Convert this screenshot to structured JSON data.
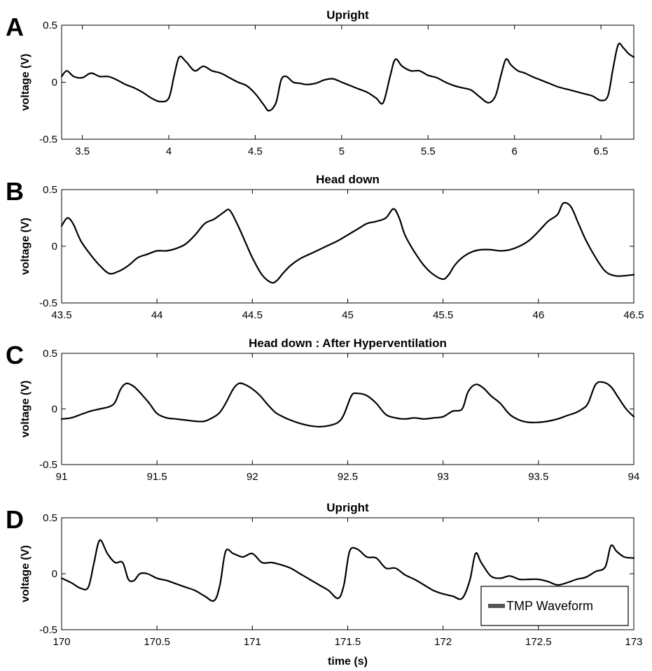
{
  "chart_data": [
    {
      "panel": "A",
      "type": "line",
      "title": "Upright",
      "ylabel": "voltage (V)",
      "xlabel": "",
      "xlim": [
        3.38,
        6.69
      ],
      "ylim": [
        -0.5,
        0.5
      ],
      "xticks": [
        "3.5",
        "4",
        "4.5",
        "5",
        "5.5",
        "6",
        "6.5"
      ],
      "yticks": [
        "-0.5",
        "0",
        "0.5"
      ],
      "series": [
        {
          "x": [
            3.38,
            3.41,
            3.45,
            3.5,
            3.55,
            3.6,
            3.65,
            3.7,
            3.75,
            3.8,
            3.85,
            3.9,
            3.95,
            4.0,
            4.03,
            4.06,
            4.1,
            4.15,
            4.2,
            4.25,
            4.3,
            4.35,
            4.4,
            4.45,
            4.5,
            4.55,
            4.58,
            4.62,
            4.65,
            4.68,
            4.72,
            4.76,
            4.8,
            4.85,
            4.9,
            4.95,
            5.0,
            5.05,
            5.1,
            5.15,
            5.2,
            5.24,
            5.28,
            5.31,
            5.35,
            5.4,
            5.45,
            5.5,
            5.55,
            5.6,
            5.65,
            5.7,
            5.75,
            5.8,
            5.85,
            5.89,
            5.92,
            5.95,
            5.98,
            6.02,
            6.06,
            6.1,
            6.15,
            6.2,
            6.25,
            6.3,
            6.35,
            6.4,
            6.45,
            6.5,
            6.54,
            6.57,
            6.6,
            6.63,
            6.66,
            6.69
          ],
          "y": [
            0.05,
            0.1,
            0.05,
            0.04,
            0.08,
            0.05,
            0.05,
            0.02,
            -0.02,
            -0.05,
            -0.09,
            -0.14,
            -0.17,
            -0.14,
            0.05,
            0.22,
            0.18,
            0.1,
            0.14,
            0.1,
            0.08,
            0.04,
            0.0,
            -0.03,
            -0.1,
            -0.2,
            -0.25,
            -0.18,
            0.02,
            0.05,
            0.0,
            -0.01,
            -0.02,
            -0.01,
            0.02,
            0.03,
            0.0,
            -0.03,
            -0.06,
            -0.09,
            -0.14,
            -0.18,
            0.05,
            0.2,
            0.14,
            0.1,
            0.1,
            0.06,
            0.04,
            0.0,
            -0.03,
            -0.05,
            -0.07,
            -0.13,
            -0.18,
            -0.12,
            0.05,
            0.2,
            0.15,
            0.1,
            0.08,
            0.05,
            0.02,
            -0.01,
            -0.04,
            -0.06,
            -0.08,
            -0.1,
            -0.12,
            -0.16,
            -0.12,
            0.12,
            0.33,
            0.3,
            0.25,
            0.22
          ]
        }
      ]
    },
    {
      "panel": "B",
      "type": "line",
      "title": "Head down",
      "ylabel": "voltage (V)",
      "xlabel": "",
      "xlim": [
        43.5,
        46.5
      ],
      "ylim": [
        -0.5,
        0.5
      ],
      "xticks": [
        "43.5",
        "44",
        "44.5",
        "45",
        "45.5",
        "46",
        "46.5"
      ],
      "yticks": [
        "-0.5",
        "0",
        "0.5"
      ],
      "series": [
        {
          "x": [
            43.5,
            43.53,
            43.56,
            43.6,
            43.65,
            43.7,
            43.75,
            43.8,
            43.85,
            43.9,
            43.95,
            44.0,
            44.05,
            44.1,
            44.15,
            44.2,
            44.25,
            44.3,
            44.35,
            44.38,
            44.42,
            44.46,
            44.5,
            44.55,
            44.6,
            44.63,
            44.66,
            44.7,
            44.75,
            44.8,
            44.85,
            44.9,
            44.95,
            45.0,
            45.05,
            45.1,
            45.15,
            45.2,
            45.24,
            45.27,
            45.3,
            45.35,
            45.4,
            45.45,
            45.5,
            45.53,
            45.56,
            45.6,
            45.65,
            45.7,
            45.75,
            45.8,
            45.85,
            45.9,
            45.95,
            46.0,
            46.05,
            46.1,
            46.13,
            46.17,
            46.21,
            46.25,
            46.3,
            46.35,
            46.4,
            46.45,
            46.5
          ],
          "y": [
            0.18,
            0.25,
            0.2,
            0.05,
            -0.07,
            -0.17,
            -0.24,
            -0.22,
            -0.17,
            -0.1,
            -0.07,
            -0.04,
            -0.04,
            -0.02,
            0.02,
            0.1,
            0.2,
            0.24,
            0.3,
            0.32,
            0.2,
            0.05,
            -0.1,
            -0.25,
            -0.32,
            -0.3,
            -0.24,
            -0.17,
            -0.11,
            -0.07,
            -0.03,
            0.01,
            0.05,
            0.1,
            0.15,
            0.2,
            0.22,
            0.25,
            0.33,
            0.25,
            0.1,
            -0.05,
            -0.17,
            -0.25,
            -0.29,
            -0.25,
            -0.17,
            -0.1,
            -0.05,
            -0.03,
            -0.03,
            -0.04,
            -0.03,
            0.0,
            0.05,
            0.13,
            0.22,
            0.28,
            0.38,
            0.35,
            0.2,
            0.05,
            -0.1,
            -0.22,
            -0.26,
            -0.26,
            -0.25
          ]
        }
      ]
    },
    {
      "panel": "C",
      "type": "line",
      "title": "Head down : After Hyperventilation",
      "ylabel": "voltage (V)",
      "xlabel": "",
      "xlim": [
        91,
        94
      ],
      "ylim": [
        -0.5,
        0.5
      ],
      "xticks": [
        "91",
        "91.5",
        "92",
        "92.5",
        "93",
        "93.5",
        "94"
      ],
      "yticks": [
        "-0.5",
        "0",
        "0.5"
      ],
      "series": [
        {
          "x": [
            91.0,
            91.05,
            91.1,
            91.15,
            91.2,
            91.25,
            91.28,
            91.31,
            91.34,
            91.38,
            91.42,
            91.46,
            91.5,
            91.55,
            91.6,
            91.65,
            91.7,
            91.75,
            91.8,
            91.83,
            91.86,
            91.9,
            91.93,
            91.96,
            92.0,
            92.04,
            92.08,
            92.12,
            92.16,
            92.2,
            92.25,
            92.3,
            92.35,
            92.4,
            92.45,
            92.48,
            92.52,
            92.55,
            92.6,
            92.65,
            92.7,
            92.75,
            92.8,
            92.85,
            92.9,
            92.95,
            93.0,
            93.05,
            93.1,
            93.13,
            93.17,
            93.21,
            93.25,
            93.3,
            93.35,
            93.4,
            93.45,
            93.5,
            93.55,
            93.6,
            93.65,
            93.7,
            93.73,
            93.76,
            93.8,
            93.84,
            93.88,
            93.92,
            93.96,
            94.0
          ],
          "y": [
            -0.09,
            -0.08,
            -0.05,
            -0.02,
            0.0,
            0.02,
            0.06,
            0.18,
            0.23,
            0.2,
            0.13,
            0.05,
            -0.04,
            -0.08,
            -0.09,
            -0.1,
            -0.11,
            -0.11,
            -0.07,
            -0.03,
            0.05,
            0.18,
            0.23,
            0.22,
            0.18,
            0.12,
            0.04,
            -0.03,
            -0.07,
            -0.1,
            -0.13,
            -0.15,
            -0.16,
            -0.15,
            -0.12,
            -0.05,
            0.12,
            0.14,
            0.12,
            0.05,
            -0.05,
            -0.08,
            -0.09,
            -0.08,
            -0.09,
            -0.08,
            -0.07,
            -0.02,
            0.0,
            0.15,
            0.22,
            0.19,
            0.12,
            0.05,
            -0.05,
            -0.1,
            -0.12,
            -0.12,
            -0.11,
            -0.09,
            -0.06,
            -0.03,
            0.0,
            0.05,
            0.22,
            0.24,
            0.2,
            0.1,
            0.0,
            -0.07
          ]
        }
      ]
    },
    {
      "panel": "D",
      "type": "line",
      "title": "Upright",
      "ylabel": "voltage (V)",
      "xlabel": "time (s)",
      "xlim": [
        170,
        173
      ],
      "ylim": [
        -0.5,
        0.5
      ],
      "xticks": [
        "170",
        "170.5",
        "171",
        "171.5",
        "172",
        "172.5",
        "173"
      ],
      "yticks": [
        "-0.5",
        "0",
        "0.5"
      ],
      "legend": {
        "entries": [
          "TMP Waveform"
        ],
        "location": "bottom-right"
      },
      "series": [
        {
          "name": "TMP Waveform",
          "x": [
            170.0,
            170.05,
            170.1,
            170.14,
            170.17,
            170.2,
            170.24,
            170.28,
            170.32,
            170.35,
            170.38,
            170.41,
            170.45,
            170.5,
            170.55,
            170.6,
            170.65,
            170.7,
            170.75,
            170.8,
            170.83,
            170.86,
            170.9,
            170.95,
            171.0,
            171.05,
            171.1,
            171.15,
            171.2,
            171.25,
            171.3,
            171.35,
            171.4,
            171.45,
            171.48,
            171.51,
            171.55,
            171.6,
            171.65,
            171.7,
            171.75,
            171.8,
            171.85,
            171.9,
            171.95,
            172.0,
            172.05,
            172.1,
            172.14,
            172.17,
            172.2,
            172.25,
            172.3,
            172.35,
            172.4,
            172.45,
            172.5,
            172.55,
            172.6,
            172.65,
            172.7,
            172.75,
            172.8,
            172.85,
            172.88,
            172.91,
            172.95,
            173.0
          ],
          "y": [
            -0.04,
            -0.08,
            -0.13,
            -0.12,
            0.1,
            0.3,
            0.18,
            0.1,
            0.1,
            -0.05,
            -0.06,
            0.0,
            0.0,
            -0.04,
            -0.06,
            -0.09,
            -0.12,
            -0.15,
            -0.2,
            -0.24,
            -0.1,
            0.2,
            0.18,
            0.15,
            0.18,
            0.1,
            0.1,
            0.08,
            0.05,
            0.0,
            -0.05,
            -0.1,
            -0.15,
            -0.22,
            -0.1,
            0.2,
            0.22,
            0.15,
            0.14,
            0.05,
            0.05,
            -0.01,
            -0.05,
            -0.1,
            -0.15,
            -0.18,
            -0.2,
            -0.22,
            -0.06,
            0.18,
            0.1,
            -0.02,
            -0.04,
            -0.02,
            -0.05,
            -0.05,
            -0.05,
            -0.07,
            -0.1,
            -0.08,
            -0.05,
            -0.03,
            0.02,
            0.06,
            0.25,
            0.2,
            0.15,
            0.14
          ]
        }
      ]
    }
  ]
}
